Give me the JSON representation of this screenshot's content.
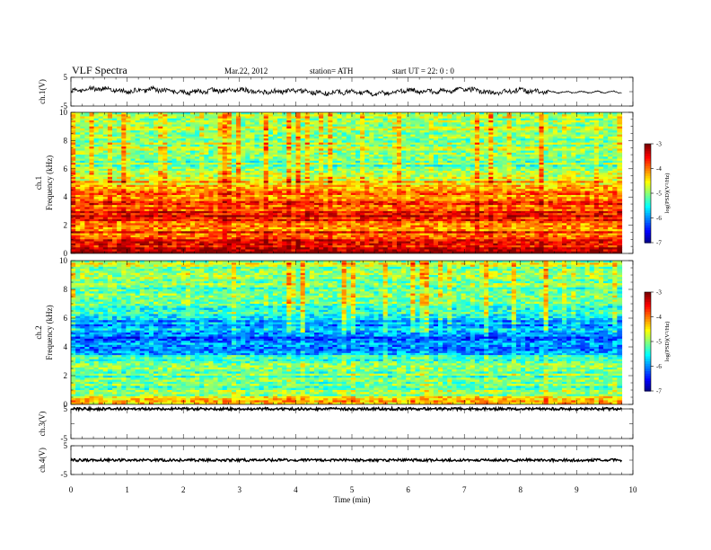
{
  "header": {
    "title": "VLF  Spectra",
    "date": "Mar.22, 2012",
    "station": "station= ATH",
    "start": "start  UT  =    22: 0   : 0"
  },
  "chart_data": [
    {
      "type": "line",
      "ylabel": "ch.1(V)",
      "yticks": [
        "5",
        "-5"
      ],
      "ylim": [
        -5,
        5
      ],
      "xlim": [
        0,
        10
      ],
      "description_series": "ch.1 waveform amplitude",
      "approx_envelope": [
        {
          "x": 0.0,
          "y": 0.2
        },
        {
          "x": 0.5,
          "y": 1.2
        },
        {
          "x": 1.0,
          "y": 0.0
        },
        {
          "x": 1.5,
          "y": 0.8
        },
        {
          "x": 2.0,
          "y": -0.3
        },
        {
          "x": 2.5,
          "y": 0.3
        },
        {
          "x": 3.0,
          "y": 0.6
        },
        {
          "x": 3.5,
          "y": -0.2
        },
        {
          "x": 4.0,
          "y": 0.4
        },
        {
          "x": 4.5,
          "y": -0.5
        },
        {
          "x": 5.0,
          "y": 0.0
        },
        {
          "x": 5.5,
          "y": -0.7
        },
        {
          "x": 6.0,
          "y": 0.5
        },
        {
          "x": 6.5,
          "y": 0.0
        },
        {
          "x": 7.0,
          "y": 0.9
        },
        {
          "x": 7.5,
          "y": -0.4
        },
        {
          "x": 8.0,
          "y": 0.5
        },
        {
          "x": 8.5,
          "y": -0.2
        },
        {
          "x": 9.0,
          "y": -0.2
        },
        {
          "x": 9.5,
          "y": -0.1
        },
        {
          "x": 9.8,
          "y": -0.1
        }
      ]
    },
    {
      "type": "heatmap",
      "channel": "ch.1",
      "ylabel": "Frequency  (kHz)",
      "channel_label": "ch.1",
      "yticks": [
        "0",
        "2",
        "4",
        "6",
        "8",
        "10"
      ],
      "ylim": [
        0,
        10
      ],
      "xlim": [
        0,
        10
      ],
      "data_end_min": 9.8,
      "colorbar": {
        "label": "log(PSD)(V²/Hz)",
        "ticks": [
          "-3",
          "-4",
          "-5",
          "-6",
          "-7"
        ],
        "range": [
          -7,
          -3
        ]
      },
      "spectrum_profile_log_psd": [
        {
          "f": 0.0,
          "v": -3.0
        },
        {
          "f": 0.5,
          "v": -3.4
        },
        {
          "f": 1.0,
          "v": -3.6
        },
        {
          "f": 1.5,
          "v": -3.8
        },
        {
          "f": 2.0,
          "v": -3.9
        },
        {
          "f": 2.5,
          "v": -3.4
        },
        {
          "f": 3.0,
          "v": -3.7
        },
        {
          "f": 3.5,
          "v": -3.9
        },
        {
          "f": 4.0,
          "v": -4.0
        },
        {
          "f": 4.5,
          "v": -4.1
        },
        {
          "f": 5.0,
          "v": -4.4
        },
        {
          "f": 5.5,
          "v": -4.8
        },
        {
          "f": 6.0,
          "v": -5.0
        },
        {
          "f": 6.5,
          "v": -5.1
        },
        {
          "f": 7.0,
          "v": -5.0
        },
        {
          "f": 8.0,
          "v": -4.9
        },
        {
          "f": 9.0,
          "v": -4.8
        },
        {
          "f": 10.0,
          "v": -4.7
        }
      ]
    },
    {
      "type": "heatmap",
      "channel": "ch.2",
      "ylabel": "Frequency  (kHz)",
      "channel_label": "ch.2",
      "yticks": [
        "0",
        "2",
        "4",
        "6",
        "8",
        "10"
      ],
      "ylim": [
        0,
        10
      ],
      "xlim": [
        0,
        10
      ],
      "data_end_min": 9.8,
      "colorbar": {
        "label": "log(PSD)(V²/Hz)",
        "ticks": [
          "-3",
          "-4",
          "-5",
          "-6",
          "-7"
        ],
        "range": [
          -7,
          -3
        ]
      },
      "spectrum_profile_log_psd": [
        {
          "f": 0.0,
          "v": -4.2
        },
        {
          "f": 0.5,
          "v": -4.6
        },
        {
          "f": 1.0,
          "v": -5.2
        },
        {
          "f": 1.5,
          "v": -5.0
        },
        {
          "f": 2.0,
          "v": -5.1
        },
        {
          "f": 2.5,
          "v": -5.0
        },
        {
          "f": 3.0,
          "v": -5.3
        },
        {
          "f": 3.5,
          "v": -5.6
        },
        {
          "f": 4.0,
          "v": -5.9
        },
        {
          "f": 4.5,
          "v": -6.2
        },
        {
          "f": 5.0,
          "v": -5.8
        },
        {
          "f": 5.5,
          "v": -6.0
        },
        {
          "f": 6.0,
          "v": -5.6
        },
        {
          "f": 6.5,
          "v": -5.4
        },
        {
          "f": 7.0,
          "v": -5.2
        },
        {
          "f": 8.0,
          "v": -5.0
        },
        {
          "f": 9.0,
          "v": -4.9
        },
        {
          "f": 10.0,
          "v": -4.8
        }
      ]
    },
    {
      "type": "line",
      "ylabel": "ch.3(V)",
      "yticks": [
        "5",
        "-5"
      ],
      "ylim": [
        -5,
        5
      ],
      "xlim": [
        0,
        10
      ],
      "approx_level": 5
    },
    {
      "type": "line",
      "ylabel": "ch.4(V)",
      "yticks": [
        "5",
        "-5"
      ],
      "ylim": [
        -5,
        5
      ],
      "xlim": [
        0,
        10
      ],
      "approx_level": 0
    }
  ],
  "x_axis": {
    "label": "Time  (min)",
    "ticks": [
      "0",
      "1",
      "2",
      "3",
      "4",
      "5",
      "6",
      "7",
      "8",
      "9",
      "10"
    ]
  }
}
